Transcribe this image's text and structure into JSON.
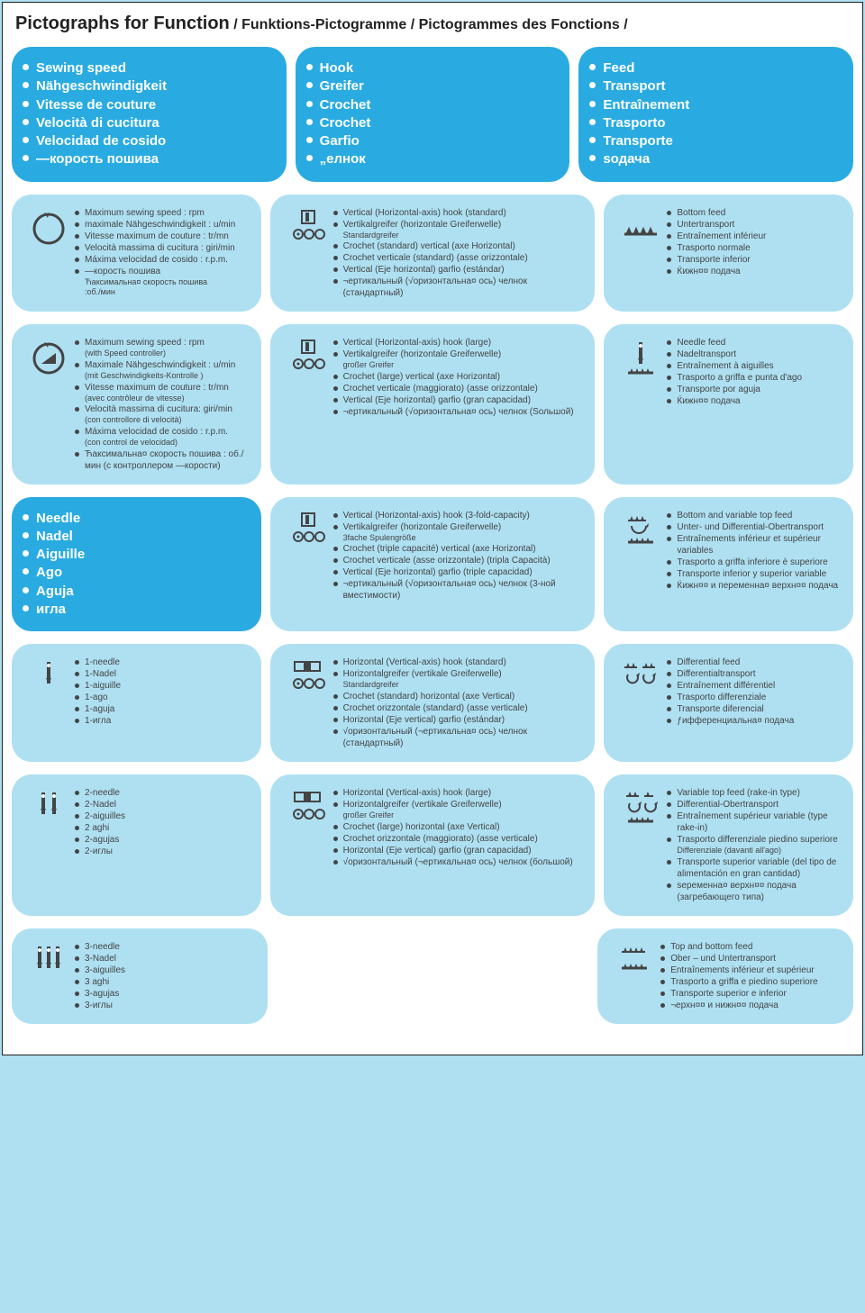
{
  "colors": {
    "page_bg": "#ffffff",
    "outer_bg": "#aee0f2",
    "card_dark": "#29abe2",
    "card_light": "#aee0f2",
    "text_dark": "#444444",
    "text_light": "#ffffff",
    "border": "#222222"
  },
  "title_main": "Pictographs for Function",
  "title_sub": " / Funktions-Pictogramme / Pictogrammes des Fonctions /",
  "headers": {
    "speed": [
      "Sewing speed",
      "Nähgeschwindigkeit",
      "Vitesse de couture",
      "Velocità di cucitura",
      "Velocidad de cosido",
      "—корость пошива"
    ],
    "hook": [
      "Hook",
      "Greifer",
      "Crochet",
      "Crochet",
      "Garfio",
      "„елнок"
    ],
    "feed": [
      "Feed",
      "Transport",
      "Entraînement",
      "Trasporto",
      "Transporte",
      "ѕодача"
    ],
    "needle": [
      "Needle",
      "Nadel",
      "Aiguille",
      "Ago",
      "Aguja",
      "игла"
    ]
  },
  "cards": {
    "speed_max": {
      "icon": "cycle",
      "items": [
        "Maximum sewing speed : rpm",
        "maximale Nähgeschwindigkeit : u/min",
        "Vitesse maximum de couture : tr/mn",
        "Velocità massima di cucitura : giri/min",
        "Máxima velocidad de cosido : r.p.m.",
        "—корость пошива\nЋаксимальна¤ скорость пошива\n:об./мин"
      ]
    },
    "speed_ctrl": {
      "icon": "cycle-tri",
      "items": [
        "Maximum sewing speed : rpm\n(with Speed controller)",
        "Maximale Nähgeschwindigkeit : u/min\n(mit Geschwindigkeits-Kontrolle )",
        "Vitesse maximum de couture : tr/mn\n(avec contrôleur de vitesse)",
        "Velocità massima di cucitura: giri/min\n(con controllore di velocità)",
        "Máxima velocidad de cosido : r.p.m.\n(con control de velocidad)",
        "Ћаксимальна¤ скорость пошива : об./мин (с контроллером —корости)"
      ]
    },
    "hook_std": {
      "icon": "hook-v",
      "items": [
        "Vertical (Horizontal-axis) hook (standard)",
        "Vertikalgreifer (horizontale Greiferwelle)\nStandardgreifer",
        "Crochet (standard) vertical (axe Horizontal)",
        "Crochet verticale (standard) (asse orizzontale)",
        "Vertical (Eje horizontal) garfio (estándar)",
        "¬ертикальный (√оризонтальна¤ ось) челнок (стандартный)"
      ]
    },
    "hook_large": {
      "icon": "hook-v",
      "items": [
        "Vertical (Horizontal-axis) hook (large)",
        "Vertikalgreifer (horizontale Greiferwelle)\ngroßer Greifer",
        "Crochet (large) vertical (axe Horizontal)",
        "Crochet verticale (maggiorato) (asse orizzontale)",
        "Vertical (Eje horizontal) garfio (gran capacidad)",
        "¬ертикальный (√оризонтальна¤ ось) челнок (Ѕольшой)"
      ]
    },
    "hook_3fold": {
      "icon": "hook-v",
      "items": [
        "Vertical (Horizontal-axis) hook (3-fold-capacity)",
        "Vertikalgreifer (horizontale Greiferwelle)\n3fache Spulengröße",
        "Crochet (triple capacité) vertical (axe Horizontal)",
        "Crochet verticale (asse orizzontale) (tripla Capacità)",
        "Vertical (Eje horizontal) garfio (triple capacidad)",
        "¬ертикальный (√оризонтальна¤ ось) челнок (3-ной вместимости)"
      ]
    },
    "hook_hstd": {
      "icon": "hook-h",
      "items": [
        "Horizontal (Vertical-axis) hook (standard)",
        "Horizontalgreifer (vertikale Greiferwelle)\nStandardgreifer",
        "Crochet (standard) horizontal (axe Vertical)",
        "Crochet orizzontale (standard) (asse verticale)",
        "Horizontal (Eje vertical) garfio (estándar)",
        "√оризонтальный (¬ертикальна¤ ось) челнок (стандартный)"
      ]
    },
    "hook_hlarge": {
      "icon": "hook-h",
      "items": [
        "Horizontal (Vertical-axis) hook (large)",
        "Horizontalgreifer (vertikale Greiferwelle)\ngroßer Greifer",
        "Crochet (large) horizontal (axe Vertical)",
        "Crochet orizzontale (maggiorato) (asse verticale)",
        "Horizontal (Eje vertical) garfio (gran capacidad)",
        "√оризонтальный (¬ертикальна¤ ось) челнок (большой)"
      ]
    },
    "feed_bottom": {
      "icon": "teeth",
      "items": [
        "Bottom feed",
        "Untertransport",
        "Entraînement inférieur",
        "Trasporto normale",
        "Transporte inferior",
        "Ќижн¤¤ подача"
      ]
    },
    "feed_needle": {
      "icon": "needle-teeth",
      "items": [
        "Needle feed",
        "Nadeltransport",
        "Entraînement à aiguilles",
        "Trasporto a griffa e punta d'ago",
        "Transporte por aguja",
        "Ќижн¤¤ подача"
      ]
    },
    "feed_bv": {
      "icon": "bv-feed",
      "items": [
        "Bottom and variable top feed",
        "Unter- und Differential-Obertransport",
        "Entraînements inférieur et supérieur variables",
        "Trasporto a griffa inferiore è superiore",
        "Transporte inferior y superior variable",
        "Ќижн¤¤ и переменна¤ верхн¤¤ подача"
      ]
    },
    "feed_diff": {
      "icon": "diff-feed",
      "items": [
        "Differential feed",
        "Differentialtransport",
        "Entraînement différentiel",
        "Trasporto differenziale",
        "Transporte diferencial",
        "ƒифференциальна¤ подача"
      ]
    },
    "feed_vtop": {
      "icon": "vtop-feed",
      "items": [
        "Variable top feed (rake-in type)",
        "Differential-Obertransport",
        "Entraînement supérieur variable (type rake-in)",
        "Trasporto differenziale piedino superiore\nDifferenziale (davanti all'ago)",
        "Transporte superior variable (del tipo de alimentación en gran cantidad)",
        "ѕеременна¤ верхн¤¤ подача (загребающего типа)"
      ]
    },
    "feed_tb": {
      "icon": "tb-feed",
      "items": [
        "Top and bottom feed",
        "Ober – und Untertransport",
        "Entraînements inférieur et supérieur",
        "Trasporto a griffa e piedino superiore",
        "Transporte superior e inferior",
        "¬ерхн¤¤ и нижн¤¤ подача"
      ]
    },
    "needle1": {
      "icon": "n1",
      "items": [
        "1-needle",
        "1-Nadel",
        "1-aiguille",
        "1-ago",
        "1-aguja",
        "1-игла"
      ]
    },
    "needle2": {
      "icon": "n2",
      "items": [
        "2-needle",
        "2-Nadel",
        "2-aiguilles",
        "2 aghi",
        "2-agujas",
        "2-иглы"
      ]
    },
    "needle3": {
      "icon": "n3",
      "items": [
        "3-needle",
        "3-Nadel",
        "3-aiguilles",
        "3 aghi",
        "3-agujas",
        "3-иглы"
      ]
    }
  },
  "layout": [
    [
      {
        "type": "hdr",
        "key": "speed",
        "n": 3
      },
      {
        "type": "hdr",
        "key": "hook",
        "n": 3
      },
      {
        "type": "hdr",
        "key": "feed",
        "n": 3
      }
    ],
    [
      {
        "type": "card",
        "key": "speed_max",
        "n": 3
      },
      {
        "type": "card",
        "key": "hook_std",
        "n": 4
      },
      {
        "type": "card",
        "key": "feed_bottom",
        "n": 3
      }
    ],
    [
      {
        "type": "card",
        "key": "speed_ctrl",
        "n": 3
      },
      {
        "type": "card",
        "key": "hook_large",
        "n": 4
      },
      {
        "type": "card",
        "key": "feed_needle",
        "n": 3
      }
    ],
    [
      {
        "type": "hdr",
        "key": "needle",
        "n": 3
      },
      {
        "type": "card",
        "key": "hook_3fold",
        "n": 4
      },
      {
        "type": "card",
        "key": "feed_bv",
        "n": 3
      }
    ],
    [
      {
        "type": "card",
        "key": "needle1",
        "n": 3
      },
      {
        "type": "card",
        "key": "hook_hstd",
        "n": 4
      },
      {
        "type": "card",
        "key": "feed_diff",
        "n": 3
      }
    ],
    [
      {
        "type": "card",
        "key": "needle2",
        "n": 3
      },
      {
        "type": "card",
        "key": "hook_hlarge",
        "n": 4
      },
      {
        "type": "card",
        "key": "feed_vtop",
        "n": 3
      }
    ],
    [
      {
        "type": "card",
        "key": "needle3",
        "n": 3
      },
      {
        "type": "spacer",
        "n": 4
      },
      {
        "type": "card",
        "key": "feed_tb",
        "n": 3
      }
    ]
  ]
}
